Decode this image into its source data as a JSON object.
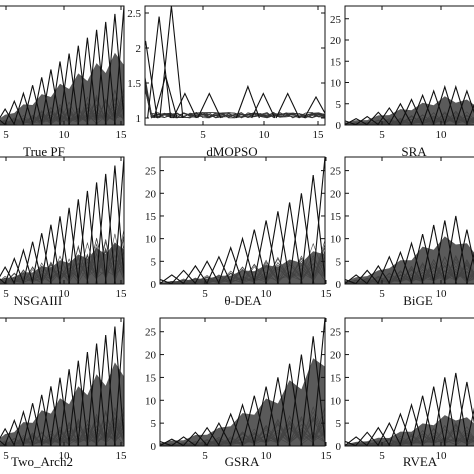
{
  "chart_data": [
    {
      "type": "line",
      "title": "True PF",
      "xticks": [
        "5",
        "10",
        "15"
      ],
      "yticks": [],
      "xlim": [
        1,
        15
      ],
      "ylim": [
        0,
        30
      ],
      "peaks": [
        2,
        4,
        6,
        8,
        10,
        12,
        14,
        16,
        18,
        20,
        22,
        24,
        26,
        28,
        30
      ],
      "peak_pos_offset": 0.3,
      "background_lines": 20,
      "bg_max_fraction": 0.25,
      "filled_band_max": 0.65,
      "seed": 11
    },
    {
      "type": "line",
      "title": "dMOPSO",
      "xticks": [
        "5",
        "10",
        "15"
      ],
      "yticks": [
        "1",
        "1.5",
        "2",
        "2.5"
      ],
      "xlim": [
        1,
        15
      ],
      "ylim": [
        0.9,
        2.6
      ],
      "series_spikes": [
        {
          "x": 1.05,
          "y": 2.1
        },
        {
          "x": 2.1,
          "y": 2.45
        },
        {
          "x": 3.05,
          "y": 2.6
        },
        {
          "x": 2.6,
          "y": 1.6
        },
        {
          "x": 4.1,
          "y": 1.35
        },
        {
          "x": 6.0,
          "y": 1.35
        },
        {
          "x": 9.0,
          "y": 1.45
        },
        {
          "x": 10.2,
          "y": 1.35
        },
        {
          "x": 12.1,
          "y": 1.35
        },
        {
          "x": 14.3,
          "y": 1.3
        }
      ],
      "baseline": 1.0,
      "seed": 23
    },
    {
      "type": "line",
      "title": "SRA",
      "xticks": [
        "5",
        "10"
      ],
      "yticks": [
        "0",
        "5",
        "10",
        "15",
        "20",
        "25"
      ],
      "xlim": [
        1,
        12.5
      ],
      "ylim": [
        0,
        28
      ],
      "peaks": [
        1,
        1.5,
        2,
        3,
        4,
        5,
        6,
        7,
        8,
        9,
        9,
        8,
        7
      ],
      "peak_pos_offset": 0.2,
      "background_lines": 18,
      "bg_max_fraction": 0.3,
      "filled_band_max": 0.75,
      "seed": 37
    },
    {
      "type": "line",
      "title": "NSGAIII",
      "xticks": [
        "5",
        "10",
        "15"
      ],
      "yticks": [],
      "xlim": [
        1,
        15
      ],
      "ylim": [
        0,
        30
      ],
      "peaks": [
        2,
        4,
        6,
        8,
        10,
        12,
        14,
        16,
        18,
        20,
        22,
        24,
        26,
        28,
        30
      ],
      "peak_pos_offset": 0.3,
      "background_lines": 14,
      "bg_max_fraction": 0.35,
      "filled_band_max": 0.35,
      "seed": 41
    },
    {
      "type": "line",
      "title": "θ-DEA",
      "xticks": [
        "5",
        "10",
        "15"
      ],
      "yticks": [
        "0",
        "5",
        "10",
        "15",
        "20",
        "25"
      ],
      "xlim": [
        1,
        15
      ],
      "ylim": [
        0,
        28
      ],
      "peaks": [
        1,
        2,
        3,
        4,
        5,
        6,
        8,
        10,
        12,
        14,
        16,
        18,
        20,
        24,
        28
      ],
      "peak_pos_offset": 0.3,
      "background_lines": 14,
      "bg_max_fraction": 0.3,
      "filled_band_max": 0.3,
      "seed": 53
    },
    {
      "type": "line",
      "title": "BiGE",
      "xticks": [
        "5",
        "10"
      ],
      "yticks": [
        "0",
        "5",
        "10",
        "15",
        "20",
        "25"
      ],
      "xlim": [
        1,
        12.5
      ],
      "ylim": [
        0,
        28
      ],
      "peaks": [
        1,
        2,
        3,
        4,
        6,
        7,
        9,
        11,
        13,
        14,
        15,
        12,
        10
      ],
      "peak_pos_offset": 0.2,
      "background_lines": 18,
      "bg_max_fraction": 0.35,
      "filled_band_max": 0.75,
      "seed": 61
    },
    {
      "type": "line",
      "title": "Two_Arch2",
      "xticks": [
        "5",
        "10",
        "15"
      ],
      "yticks": [],
      "xlim": [
        1,
        15
      ],
      "ylim": [
        0,
        30
      ],
      "peaks": [
        2,
        4,
        6,
        8,
        10,
        12,
        14,
        16,
        18,
        20,
        22,
        24,
        26,
        28,
        30
      ],
      "peak_pos_offset": 0.3,
      "background_lines": 20,
      "bg_max_fraction": 0.25,
      "filled_band_max": 0.7,
      "seed": 71
    },
    {
      "type": "line",
      "title": "GSRA",
      "xticks": [
        "5",
        "10",
        "15"
      ],
      "yticks": [
        "0",
        "5",
        "10",
        "15",
        "20",
        "25"
      ],
      "xlim": [
        1,
        15
      ],
      "ylim": [
        0,
        28
      ],
      "peaks": [
        1,
        1.5,
        2,
        3,
        4,
        5,
        7,
        9,
        11,
        13,
        15,
        18,
        20,
        24,
        28
      ],
      "peak_pos_offset": 0.3,
      "background_lines": 18,
      "bg_max_fraction": 0.3,
      "filled_band_max": 0.8,
      "seed": 83
    },
    {
      "type": "line",
      "title": "RVEA",
      "xticks": [
        "5",
        "10"
      ],
      "yticks": [
        "0",
        "5",
        "10",
        "15",
        "20",
        "25"
      ],
      "xlim": [
        1,
        12.5
      ],
      "ylim": [
        0,
        28
      ],
      "peaks": [
        1,
        2,
        3,
        4,
        5,
        7,
        9,
        11,
        13,
        15,
        16,
        14,
        12
      ],
      "peak_pos_offset": 0.2,
      "background_lines": 16,
      "bg_max_fraction": 0.25,
      "filled_band_max": 0.45,
      "seed": 97
    }
  ]
}
